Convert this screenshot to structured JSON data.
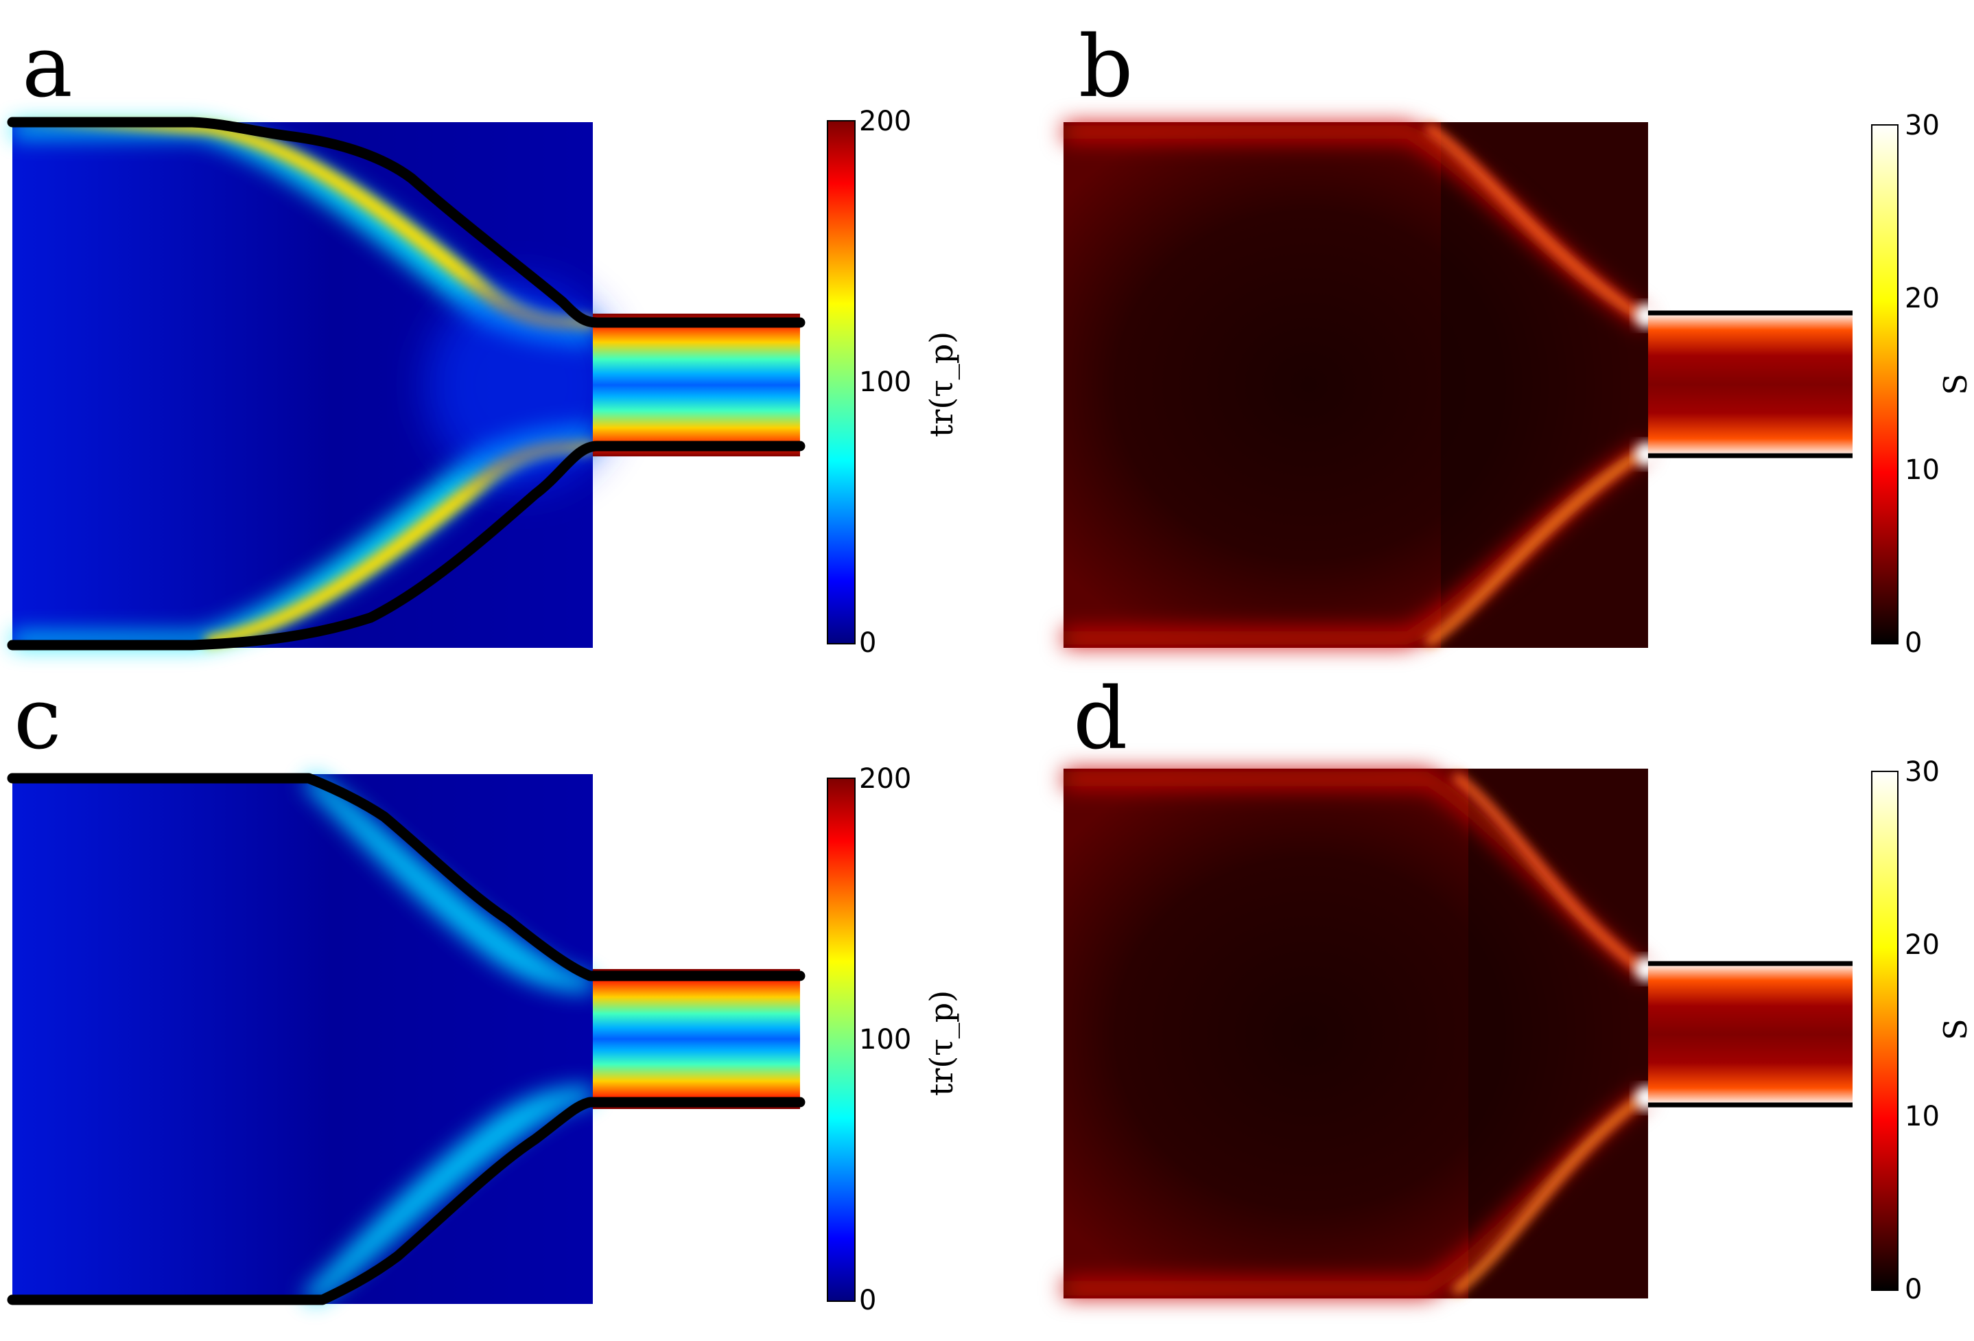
{
  "panels": [
    {
      "label": "a",
      "type": "stress",
      "colormap": "jet",
      "colorbar": {
        "label": "tr(τ_p)",
        "min": 0,
        "max": 200,
        "ticks": [
          "200",
          "100",
          "0"
        ]
      },
      "variant": "early"
    },
    {
      "label": "b",
      "type": "strain",
      "colormap": "hot",
      "colorbar": {
        "label": "S",
        "min": 0,
        "max": 30,
        "ticks": [
          "30",
          "20",
          "10",
          "0"
        ]
      },
      "variant": "early"
    },
    {
      "label": "c",
      "type": "stress",
      "colormap": "jet",
      "colorbar": {
        "label": "tr(τ_p)",
        "min": 0,
        "max": 200,
        "ticks": [
          "200",
          "100",
          "0"
        ]
      },
      "variant": "late"
    },
    {
      "label": "d",
      "type": "strain",
      "colormap": "hot",
      "colorbar": {
        "label": "S",
        "min": 0,
        "max": 30,
        "ticks": [
          "30",
          "20",
          "10",
          "0"
        ]
      },
      "variant": "late"
    }
  ],
  "colors": {
    "jet": [
      "#00007f",
      "#0000ff",
      "#007fff",
      "#00ffff",
      "#7fff7f",
      "#ffff00",
      "#ff7f00",
      "#ff0000",
      "#7f0000"
    ],
    "hot": [
      "#000000",
      "#7f0000",
      "#ff0000",
      "#ff7f00",
      "#ffff00",
      "#ffffff"
    ],
    "boundary": "#000000"
  }
}
